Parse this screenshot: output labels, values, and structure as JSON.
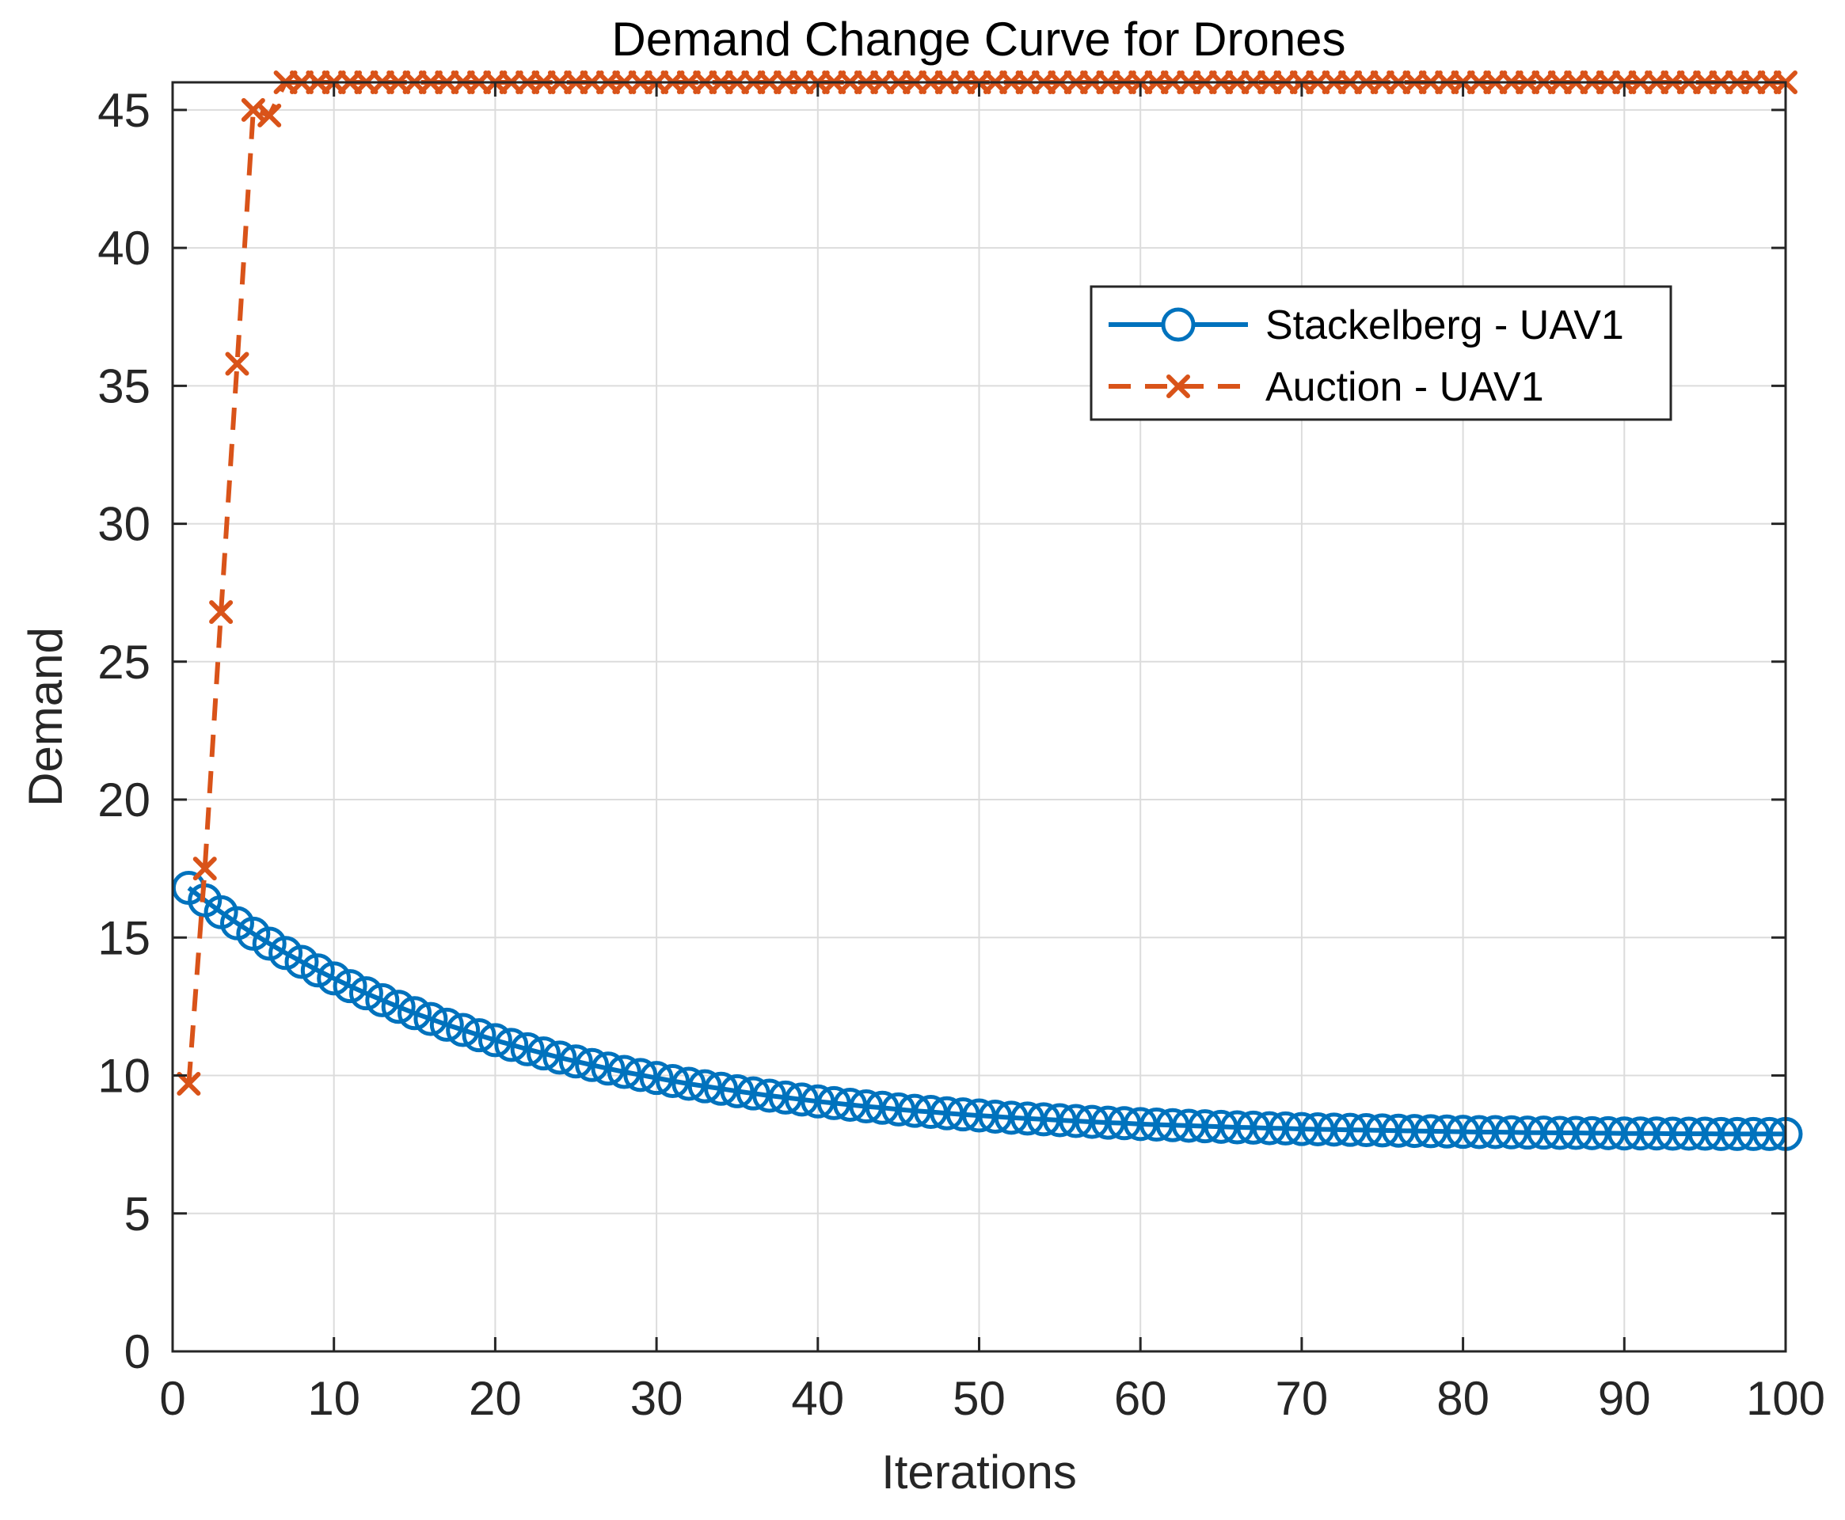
{
  "chart_data": {
    "type": "line",
    "title": "Demand Change Curve for Drones",
    "xlabel": "Iterations",
    "ylabel": "Demand",
    "xlim": [
      0,
      100
    ],
    "ylim": [
      0,
      46
    ],
    "xticks": [
      0,
      10,
      20,
      30,
      40,
      50,
      60,
      70,
      80,
      90,
      100
    ],
    "yticks": [
      0,
      5,
      10,
      15,
      20,
      25,
      30,
      35,
      40,
      45
    ],
    "grid": true,
    "legend_position": "top-right",
    "x": [
      1,
      2,
      3,
      4,
      5,
      6,
      7,
      8,
      9,
      10,
      11,
      12,
      13,
      14,
      15,
      16,
      17,
      18,
      19,
      20,
      21,
      22,
      23,
      24,
      25,
      26,
      27,
      28,
      29,
      30,
      31,
      32,
      33,
      34,
      35,
      36,
      37,
      38,
      39,
      40,
      41,
      42,
      43,
      44,
      45,
      46,
      47,
      48,
      49,
      50,
      51,
      52,
      53,
      54,
      55,
      56,
      57,
      58,
      59,
      60,
      61,
      62,
      63,
      64,
      65,
      66,
      67,
      68,
      69,
      70,
      71,
      72,
      73,
      74,
      75,
      76,
      77,
      78,
      79,
      80,
      81,
      82,
      83,
      84,
      85,
      86,
      87,
      88,
      89,
      90,
      91,
      92,
      93,
      94,
      95,
      96,
      97,
      98,
      99,
      100
    ],
    "series": [
      {
        "name": "Stackelberg - UAV1",
        "color": "#0072BD",
        "line_style": "solid",
        "marker": "circle",
        "values": [
          16.8,
          16.35,
          15.92,
          15.52,
          15.14,
          14.78,
          14.44,
          14.12,
          13.81,
          13.52,
          13.24,
          12.98,
          12.73,
          12.49,
          12.26,
          12.05,
          11.84,
          11.65,
          11.46,
          11.28,
          11.11,
          10.95,
          10.8,
          10.65,
          10.51,
          10.38,
          10.25,
          10.13,
          10.02,
          9.91,
          9.8,
          9.7,
          9.61,
          9.52,
          9.43,
          9.35,
          9.27,
          9.2,
          9.13,
          9.06,
          9.0,
          8.94,
          8.88,
          8.83,
          8.77,
          8.72,
          8.68,
          8.63,
          8.59,
          8.55,
          8.51,
          8.47,
          8.44,
          8.41,
          8.38,
          8.35,
          8.32,
          8.29,
          8.27,
          8.24,
          8.22,
          8.2,
          8.18,
          8.16,
          8.14,
          8.12,
          8.11,
          8.09,
          8.08,
          8.06,
          8.05,
          8.04,
          8.03,
          8.02,
          8.01,
          8.0,
          7.99,
          7.98,
          7.97,
          7.96,
          7.95,
          7.95,
          7.94,
          7.93,
          7.93,
          7.92,
          7.92,
          7.91,
          7.91,
          7.9,
          7.9,
          7.9,
          7.89,
          7.89,
          7.89,
          7.88,
          7.88,
          7.88,
          7.88,
          7.88
        ]
      },
      {
        "name": "Auction - UAV1",
        "color": "#D95319",
        "line_style": "dashed",
        "marker": "x",
        "values": [
          9.7,
          17.5,
          26.8,
          35.8,
          45.0,
          44.8,
          46.0,
          46.0,
          46.0,
          46.0,
          46.0,
          46.0,
          46.0,
          46.0,
          46.0,
          46.0,
          46.0,
          46.0,
          46.0,
          46.0,
          46.0,
          46.0,
          46.0,
          46.0,
          46.0,
          46.0,
          46.0,
          46.0,
          46.0,
          46.0,
          46.0,
          46.0,
          46.0,
          46.0,
          46.0,
          46.0,
          46.0,
          46.0,
          46.0,
          46.0,
          46.0,
          46.0,
          46.0,
          46.0,
          46.0,
          46.0,
          46.0,
          46.0,
          46.0,
          46.0,
          46.0,
          46.0,
          46.0,
          46.0,
          46.0,
          46.0,
          46.0,
          46.0,
          46.0,
          46.0,
          46.0,
          46.0,
          46.0,
          46.0,
          46.0,
          46.0,
          46.0,
          46.0,
          46.0,
          46.0,
          46.0,
          46.0,
          46.0,
          46.0,
          46.0,
          46.0,
          46.0,
          46.0,
          46.0,
          46.0,
          46.0,
          46.0,
          46.0,
          46.0,
          46.0,
          46.0,
          46.0,
          46.0,
          46.0,
          46.0,
          46.0,
          46.0,
          46.0,
          46.0,
          46.0,
          46.0,
          46.0,
          46.0,
          46.0,
          46.0
        ]
      }
    ]
  }
}
